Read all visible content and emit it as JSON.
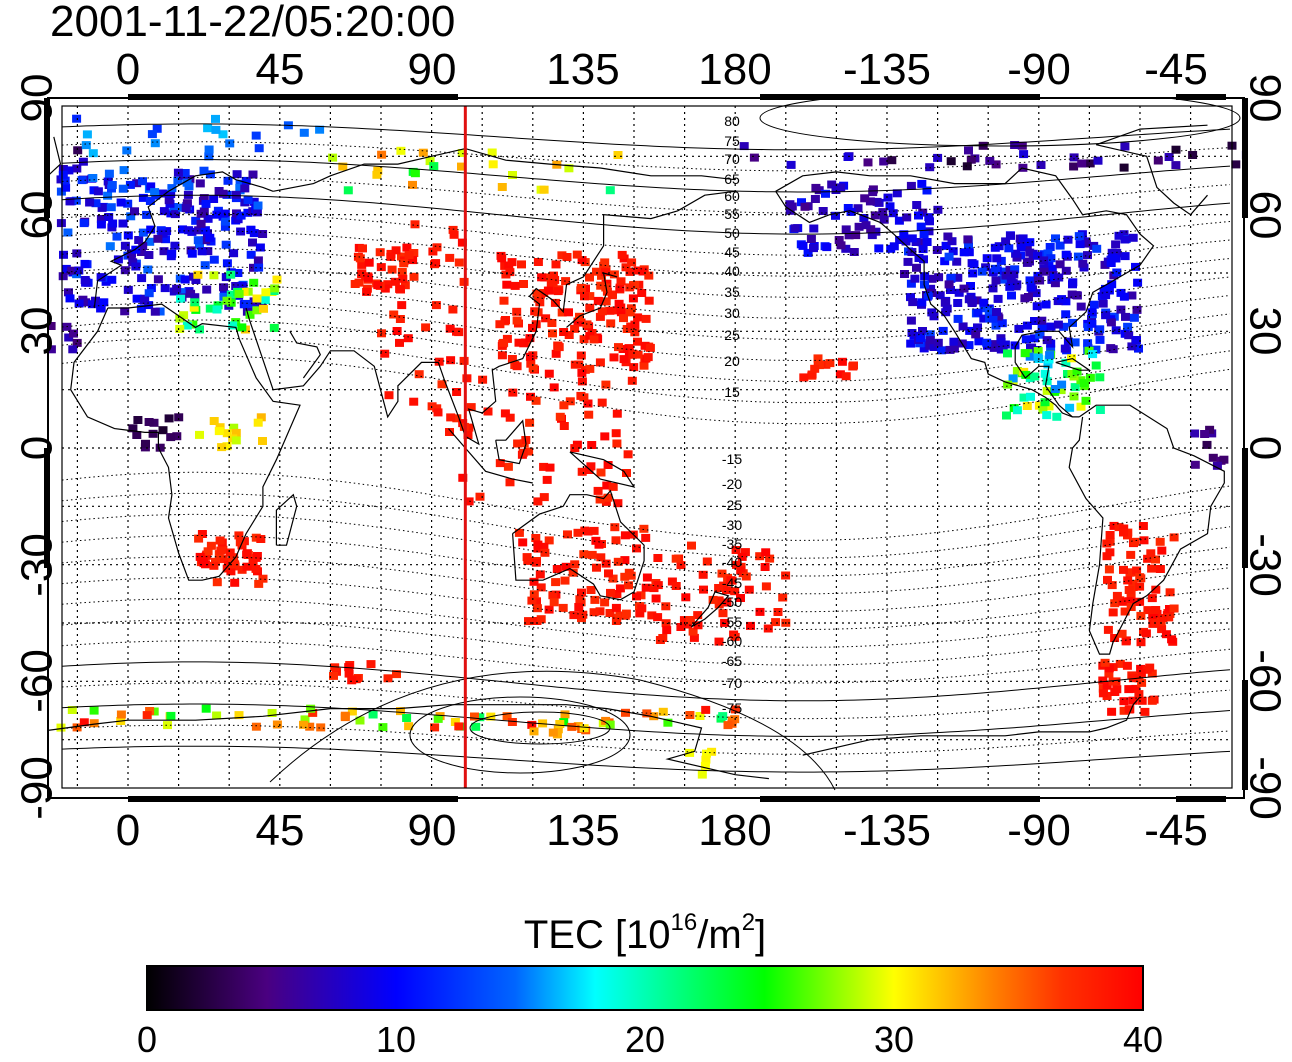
{
  "title": "2001-11-22/05:20:00",
  "map": {
    "top_lon_ticks": [
      "0",
      "45",
      "90",
      "135",
      "180",
      "-135",
      "-90",
      "-45"
    ],
    "bottom_lon_ticks": [
      "0",
      "45",
      "90",
      "135",
      "180",
      "-135",
      "-90",
      "-45"
    ],
    "left_lat_ticks": [
      "90",
      "60",
      "30",
      "0",
      "-30",
      "-60",
      "-90"
    ],
    "right_lat_ticks": [
      "90",
      "60",
      "30",
      "0",
      "-30",
      "-60",
      "-90"
    ],
    "contour_labels_north": [
      "80",
      "75",
      "70",
      "65",
      "60",
      "55",
      "50",
      "45",
      "40",
      "35",
      "30",
      "25",
      "20",
      "15"
    ],
    "contour_labels_south": [
      "-15",
      "-20",
      "-25",
      "-30",
      "-35",
      "-40",
      "-45",
      "-50",
      "-55",
      "-60",
      "-65",
      "-70",
      "-75"
    ],
    "reference_meridian_lon": 100,
    "colors": {
      "meridian": "#e01010",
      "grid": "#000000",
      "coast": "#000000"
    }
  },
  "colorbar": {
    "label_main": "TEC  [10",
    "label_sup": "16",
    "label_mid": "/m",
    "label_sup2": "2",
    "label_end": "]",
    "min": 0,
    "max": 40,
    "ticks": [
      "0",
      "10",
      "20",
      "30",
      "40"
    ],
    "stops": [
      "#000000",
      "#4a0080",
      "#0000ff",
      "#00ffff",
      "#00ff00",
      "#ffff00",
      "#ff8000",
      "#ff0000"
    ]
  }
}
